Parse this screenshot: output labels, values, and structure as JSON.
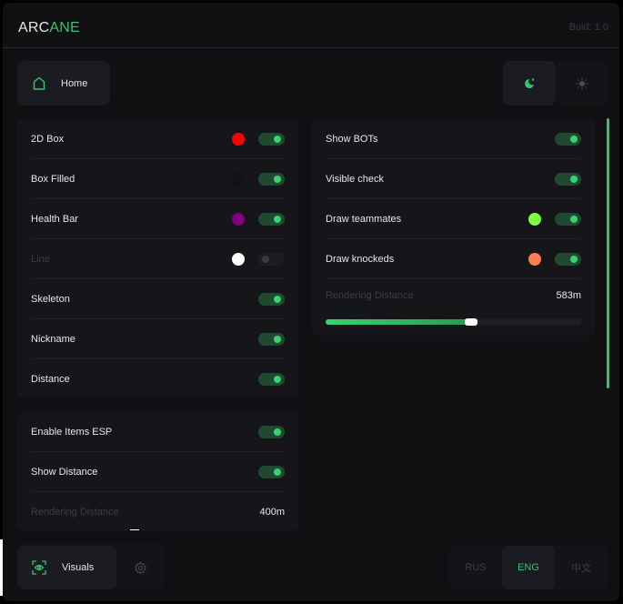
{
  "header": {
    "logo_part1": "ARC",
    "logo_part2": "ANE",
    "build": "Buid: 1.0"
  },
  "nav": {
    "home_label": "Home",
    "visuals_label": "Visuals"
  },
  "theme": {
    "active": "dark"
  },
  "colors": {
    "accent": "#34c56a"
  },
  "player_esp": [
    {
      "label": "2D Box",
      "color": "#ff0000",
      "enabled": true
    },
    {
      "label": "Box Filled",
      "color": "#111111",
      "enabled": true
    },
    {
      "label": "Health Bar",
      "color": "#800080",
      "enabled": true
    },
    {
      "label": "Line",
      "color": "#ffffff",
      "enabled": false
    },
    {
      "label": "Skeleton",
      "enabled": true
    },
    {
      "label": "Nickname",
      "enabled": true
    },
    {
      "label": "Distance",
      "enabled": true
    }
  ],
  "general": {
    "items": [
      {
        "label": "Show BOTs",
        "enabled": true
      },
      {
        "label": "Visible check",
        "enabled": true
      },
      {
        "label": "Draw teammates",
        "color": "#7dff3f",
        "enabled": true
      },
      {
        "label": "Draw knockeds",
        "color": "#ff7f50",
        "enabled": true
      }
    ],
    "distance_label": "Rendering Distance",
    "distance_value": "583m",
    "distance_fraction": 0.57
  },
  "items_esp": {
    "items": [
      {
        "label": "Enable Items ESP",
        "enabled": true
      },
      {
        "label": "Show Distance",
        "enabled": true
      }
    ],
    "distance_label": "Rendering Distance",
    "distance_value": "400m"
  },
  "languages": [
    "RUS",
    "ENG",
    "中文"
  ],
  "active_language": "ENG"
}
